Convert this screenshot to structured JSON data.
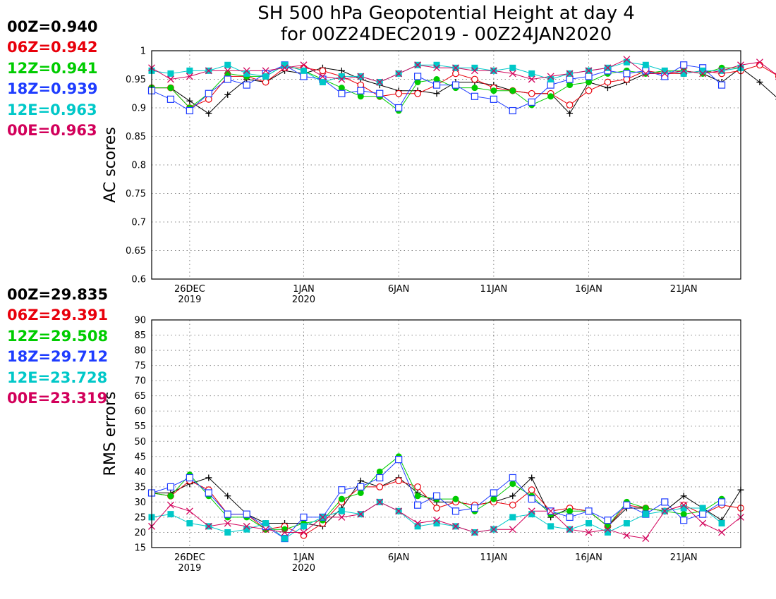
{
  "title": [
    "SH 500 hPa Geopotential Height at day 4",
    "for 00Z24DEC2019 - 00Z24JAN2020"
  ],
  "legend_ac": [
    {
      "label": "00Z=0.940",
      "color": "#000000"
    },
    {
      "label": "06Z=0.942",
      "color": "#e8000b"
    },
    {
      "label": "12Z=0.941",
      "color": "#00cc00"
    },
    {
      "label": "18Z=0.939",
      "color": "#1e3cff"
    },
    {
      "label": "12E=0.963",
      "color": "#00c8c8"
    },
    {
      "label": "00E=0.963",
      "color": "#d2005a"
    }
  ],
  "legend_rms": [
    {
      "label": "00Z=29.835",
      "color": "#000000"
    },
    {
      "label": "06Z=29.391",
      "color": "#e8000b"
    },
    {
      "label": "12Z=29.508",
      "color": "#00cc00"
    },
    {
      "label": "18Z=29.712",
      "color": "#1e3cff"
    },
    {
      "label": "12E=23.728",
      "color": "#00c8c8"
    },
    {
      "label": "00E=23.319",
      "color": "#d2005a"
    }
  ],
  "chart_data": [
    {
      "type": "line",
      "ylabel": "AC scores",
      "ylim": [
        0.6,
        1.0
      ],
      "yticks": [
        "0.6",
        "0.65",
        "0.7",
        "0.75",
        "0.8",
        "0.85",
        "0.9",
        "0.95",
        "1"
      ],
      "xlim_days": [
        0,
        31
      ],
      "xticks": [
        {
          "label": "26DEC",
          "sub": "2019",
          "day": 2
        },
        {
          "label": "1JAN",
          "sub": "2020",
          "day": 8
        },
        {
          "label": "6JAN",
          "sub": "",
          "day": 13
        },
        {
          "label": "11JAN",
          "sub": "",
          "day": 18
        },
        {
          "label": "16JAN",
          "sub": "",
          "day": 23
        },
        {
          "label": "21JAN",
          "sub": "",
          "day": 28
        }
      ],
      "grid": true,
      "series": [
        {
          "name": "00Z",
          "color": "#000000",
          "marker": "plus",
          "values": [
            0.935,
            0.935,
            0.912,
            0.89,
            0.923,
            0.95,
            0.945,
            0.965,
            0.96,
            0.97,
            0.965,
            0.95,
            0.94,
            0.93,
            0.93,
            0.925,
            0.945,
            0.945,
            0.94,
            0.93,
            0.925,
            0.925,
            0.89,
            0.945,
            0.935,
            0.945,
            0.96,
            0.96,
            0.965,
            0.96,
            0.945,
            0.97,
            0.945,
            0.915
          ]
        },
        {
          "name": "06Z",
          "color": "#e8000b",
          "marker": "circle",
          "values": [
            0.935,
            0.935,
            0.9,
            0.915,
            0.955,
            0.955,
            0.945,
            0.97,
            0.97,
            0.965,
            0.955,
            0.94,
            0.92,
            0.925,
            0.925,
            0.94,
            0.96,
            0.95,
            0.935,
            0.93,
            0.925,
            0.925,
            0.905,
            0.93,
            0.945,
            0.95,
            0.965,
            0.96,
            0.96,
            0.965,
            0.96,
            0.965,
            0.975,
            0.955
          ]
        },
        {
          "name": "12Z",
          "color": "#00cc00",
          "marker": "dot",
          "values": [
            0.935,
            0.935,
            0.9,
            0.925,
            0.96,
            0.955,
            0.955,
            0.975,
            0.965,
            0.95,
            0.935,
            0.92,
            0.92,
            0.895,
            0.945,
            0.95,
            0.935,
            0.935,
            0.93,
            0.93,
            0.905,
            0.92,
            0.94,
            0.945,
            0.96,
            0.965,
            0.96,
            0.965,
            0.965,
            0.96,
            0.97,
            0.97
          ]
        },
        {
          "name": "18Z",
          "color": "#1e3cff",
          "marker": "square",
          "values": [
            0.93,
            0.915,
            0.895,
            0.925,
            0.95,
            0.94,
            0.96,
            0.975,
            0.955,
            0.95,
            0.925,
            0.93,
            0.925,
            0.9,
            0.955,
            0.94,
            0.94,
            0.92,
            0.915,
            0.895,
            0.91,
            0.94,
            0.95,
            0.955,
            0.965,
            0.96,
            0.965,
            0.955,
            0.975,
            0.97,
            0.94
          ]
        },
        {
          "name": "12E",
          "color": "#00c8c8",
          "marker": "filledsquare",
          "values": [
            0.965,
            0.96,
            0.965,
            0.965,
            0.975,
            0.96,
            0.955,
            0.975,
            0.965,
            0.945,
            0.955,
            0.955,
            0.945,
            0.96,
            0.975,
            0.975,
            0.97,
            0.97,
            0.965,
            0.97,
            0.96,
            0.95,
            0.96,
            0.965,
            0.97,
            0.98,
            0.975,
            0.965,
            0.96,
            0.965,
            0.965,
            0.97
          ]
        },
        {
          "name": "00E",
          "color": "#d2005a",
          "marker": "x",
          "values": [
            0.97,
            0.95,
            0.955,
            0.965,
            0.965,
            0.965,
            0.965,
            0.97,
            0.975,
            0.955,
            0.95,
            0.955,
            0.945,
            0.96,
            0.975,
            0.97,
            0.97,
            0.965,
            0.965,
            0.96,
            0.95,
            0.955,
            0.96,
            0.965,
            0.97,
            0.985,
            0.96,
            0.96,
            0.965,
            0.96,
            0.965,
            0.975,
            0.98,
            0.955
          ]
        }
      ]
    },
    {
      "type": "line",
      "ylabel": "RMS errors",
      "ylim": [
        15,
        90
      ],
      "yticks": [
        "15",
        "20",
        "25",
        "30",
        "35",
        "40",
        "45",
        "50",
        "55",
        "60",
        "65",
        "70",
        "75",
        "80",
        "85",
        "90"
      ],
      "xlim_days": [
        0,
        31
      ],
      "xticks": [
        {
          "label": "26DEC",
          "sub": "2019",
          "day": 2
        },
        {
          "label": "1JAN",
          "sub": "2020",
          "day": 8
        },
        {
          "label": "6JAN",
          "sub": "",
          "day": 13
        },
        {
          "label": "11JAN",
          "sub": "",
          "day": 18
        },
        {
          "label": "16JAN",
          "sub": "",
          "day": 23
        },
        {
          "label": "21JAN",
          "sub": "",
          "day": 28
        }
      ],
      "grid": true,
      "series": [
        {
          "name": "00Z",
          "color": "#000000",
          "marker": "plus",
          "values": [
            33,
            33,
            36,
            38,
            32,
            26,
            23,
            23,
            23,
            22,
            28,
            37,
            35,
            38,
            33,
            30,
            30,
            29,
            30,
            32,
            38,
            25,
            28,
            27,
            22,
            28,
            28,
            27,
            32,
            28,
            24,
            34
          ]
        },
        {
          "name": "06Z",
          "color": "#e8000b",
          "marker": "circle",
          "values": [
            33,
            32,
            37,
            34,
            26,
            26,
            21,
            22,
            19,
            23,
            30,
            35,
            35,
            37,
            35,
            28,
            30,
            29,
            30,
            29,
            34,
            27,
            28,
            27,
            22,
            29,
            28,
            27,
            29,
            26,
            29,
            28
          ]
        },
        {
          "name": "12Z",
          "color": "#00cc00",
          "marker": "dot",
          "values": [
            33,
            32,
            39,
            32,
            25,
            25,
            21,
            21,
            23,
            24,
            31,
            33,
            40,
            45,
            32,
            31,
            31,
            27,
            31,
            36,
            32,
            26,
            27,
            27,
            22,
            30,
            28,
            27,
            26,
            27,
            31
          ]
        },
        {
          "name": "18Z",
          "color": "#1e3cff",
          "marker": "square",
          "values": [
            33,
            35,
            38,
            33,
            26,
            26,
            22,
            18,
            25,
            25,
            34,
            35,
            38,
            44,
            29,
            32,
            27,
            28,
            33,
            38,
            31,
            27,
            25,
            27,
            24,
            29,
            26,
            30,
            24,
            26,
            30
          ]
        },
        {
          "name": "12E",
          "color": "#00c8c8",
          "marker": "filledsquare",
          "values": [
            25,
            26,
            23,
            22,
            20,
            21,
            23,
            18,
            22,
            25,
            27,
            26,
            30,
            27,
            22,
            23,
            22,
            20,
            21,
            25,
            26,
            22,
            21,
            23,
            20,
            23,
            26,
            27,
            28,
            28,
            23
          ]
        },
        {
          "name": "00E",
          "color": "#d2005a",
          "marker": "x",
          "values": [
            22,
            29,
            27,
            22,
            23,
            22,
            21,
            20,
            20,
            25,
            25,
            26,
            30,
            27,
            23,
            24,
            22,
            20,
            21,
            21,
            27,
            27,
            21,
            20,
            21,
            19,
            18,
            27,
            29,
            23,
            20,
            25
          ]
        }
      ]
    }
  ]
}
